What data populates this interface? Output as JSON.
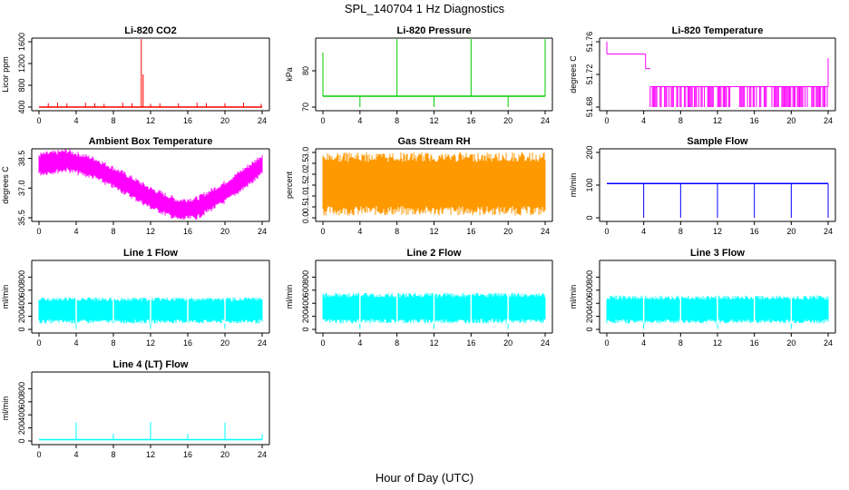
{
  "figure": {
    "title": "SPL_140704  1 Hz Diagnostics",
    "xlabel": "Hour of Day (UTC)"
  },
  "x_ticks": [
    "0",
    "4",
    "8",
    "12",
    "16",
    "20",
    "24"
  ],
  "chart_data": [
    {
      "type": "line",
      "title": "Li-820 CO2",
      "ylabel": "Licor ppm",
      "color": "#ff0000",
      "xlim": [
        0,
        24
      ],
      "ylim": [
        400,
        1600
      ],
      "yticks": [
        "400",
        "800",
        "1200",
        "1600"
      ],
      "baseline": 400,
      "spikes": [
        [
          1,
          470
        ],
        [
          2,
          480
        ],
        [
          3,
          470
        ],
        [
          5,
          480
        ],
        [
          6,
          470
        ],
        [
          7,
          460
        ],
        [
          9,
          480
        ],
        [
          10,
          470
        ],
        [
          11,
          1700
        ],
        [
          11.2,
          1000
        ],
        [
          12,
          460
        ],
        [
          13,
          470
        ],
        [
          15,
          470
        ],
        [
          17,
          480
        ],
        [
          18,
          470
        ],
        [
          20,
          470
        ],
        [
          22,
          480
        ],
        [
          23.9,
          460
        ]
      ]
    },
    {
      "type": "line",
      "title": "Li-820 Pressure",
      "ylabel": "kPa",
      "color": "#00cc00",
      "xlim": [
        0,
        24
      ],
      "ylim": [
        70,
        88
      ],
      "yticks": [
        "70",
        "80"
      ],
      "baseline": 73,
      "spikes": [
        [
          0,
          85
        ],
        [
          4,
          70
        ],
        [
          8,
          90
        ],
        [
          12,
          70
        ],
        [
          16,
          90
        ],
        [
          20,
          70
        ],
        [
          24,
          90
        ]
      ]
    },
    {
      "type": "line",
      "title": "Li-820 Temperature",
      "ylabel": "degrees C",
      "color": "#ff00ff",
      "xlim": [
        0,
        24
      ],
      "ylim": [
        51.68,
        51.76
      ],
      "yticks": [
        "51.68",
        "51.72",
        "51.76"
      ],
      "levels": [
        [
          0,
          51.745
        ],
        [
          4.2,
          51.727
        ],
        [
          4.7,
          51.705
        ],
        [
          24,
          51.74
        ]
      ]
    },
    {
      "type": "line",
      "title": "Ambient Box Temperature",
      "ylabel": "degrees C",
      "color": "#ff00ff",
      "xlim": [
        0,
        24
      ],
      "ylim": [
        35.5,
        38.8
      ],
      "yticks": [
        "35.5",
        "37.0",
        "38.5"
      ],
      "curve": [
        [
          0,
          38.2
        ],
        [
          3,
          38.4
        ],
        [
          6,
          38.0
        ],
        [
          9,
          37.3
        ],
        [
          12,
          36.5
        ],
        [
          15,
          35.9
        ],
        [
          17,
          36.0
        ],
        [
          20,
          36.8
        ],
        [
          23,
          37.8
        ],
        [
          24,
          38.2
        ]
      ]
    },
    {
      "type": "line",
      "title": "Gas Stream RH",
      "ylabel": "percent",
      "color": "#ff9900",
      "xlim": [
        0,
        24
      ],
      "ylim": [
        0,
        3.0
      ],
      "yticks": [
        "0.0",
        "0.5",
        "1.0",
        "1.5",
        "2.0",
        "2.5",
        "3.0"
      ],
      "band": [
        0.1,
        3.0
      ]
    },
    {
      "type": "line",
      "title": "Sample Flow",
      "ylabel": "ml/min",
      "color": "#0000ff",
      "xlim": [
        0,
        24
      ],
      "ylim": [
        0,
        200
      ],
      "yticks": [
        "0",
        "100",
        "200"
      ],
      "baseline": 105,
      "spikes": [
        [
          4,
          0
        ],
        [
          8,
          0
        ],
        [
          12,
          0
        ],
        [
          16,
          0
        ],
        [
          20,
          0
        ],
        [
          24,
          0
        ]
      ]
    },
    {
      "type": "line",
      "title": "Line 1 Flow",
      "ylabel": "ml/min",
      "color": "#00ffff",
      "xlim": [
        0,
        24
      ],
      "ylim": [
        0,
        1000
      ],
      "yticks": [
        "0",
        "200",
        "400",
        "600",
        "800"
      ],
      "band": [
        90,
        490
      ]
    },
    {
      "type": "line",
      "title": "Line 2 Flow",
      "ylabel": "ml/min",
      "color": "#00ffff",
      "xlim": [
        0,
        24
      ],
      "ylim": [
        0,
        1000
      ],
      "yticks": [
        "0",
        "200",
        "400",
        "600",
        "800"
      ],
      "band": [
        90,
        560
      ]
    },
    {
      "type": "line",
      "title": "Line 3 Flow",
      "ylabel": "ml/min",
      "color": "#00ffff",
      "xlim": [
        0,
        24
      ],
      "ylim": [
        0,
        1000
      ],
      "yticks": [
        "0",
        "200",
        "400",
        "600",
        "800"
      ],
      "band": [
        90,
        520
      ]
    },
    {
      "type": "line",
      "title": "Line 4 (LT) Flow",
      "ylabel": "ml/min",
      "color": "#00ffff",
      "xlim": [
        0,
        24
      ],
      "ylim": [
        0,
        1000
      ],
      "yticks": [
        "0",
        "200",
        "400",
        "600",
        "800"
      ],
      "baseline": 20,
      "spikes": [
        [
          4,
          280
        ],
        [
          8,
          110
        ],
        [
          12,
          290
        ],
        [
          16,
          110
        ],
        [
          20,
          280
        ],
        [
          24,
          110
        ]
      ]
    }
  ]
}
